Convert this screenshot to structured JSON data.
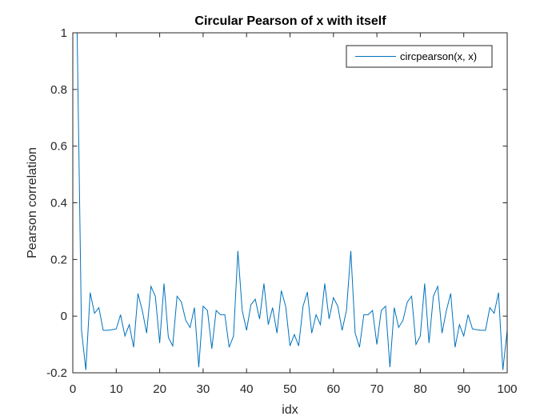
{
  "chart_data": {
    "type": "line",
    "title": "Circular Pearson of x with itself",
    "xlabel": "idx",
    "ylabel": "Pearson correlation",
    "xlim": [
      0,
      100
    ],
    "ylim": [
      -0.2,
      1
    ],
    "xticks": [
      "0",
      "10",
      "20",
      "30",
      "40",
      "50",
      "60",
      "70",
      "80",
      "90",
      "100"
    ],
    "yticks": [
      "-0.2",
      "0",
      "0.2",
      "0.4",
      "0.6",
      "0.8",
      "1"
    ],
    "grid": false,
    "legend_position": "top-right",
    "series": [
      {
        "name": "circpearson(x, x)",
        "color": "#0072BD",
        "x": [
          1,
          2,
          3,
          4,
          5,
          6,
          7,
          8,
          9,
          10,
          11,
          12,
          13,
          14,
          15,
          16,
          17,
          18,
          19,
          20,
          21,
          22,
          23,
          24,
          25,
          26,
          27,
          28,
          29,
          30,
          31,
          32,
          33,
          34,
          35,
          36,
          37,
          38,
          39,
          40,
          41,
          42,
          43,
          44,
          45,
          46,
          47,
          48,
          49,
          50,
          51,
          52,
          53,
          54,
          55,
          56,
          57,
          58,
          59,
          60,
          61,
          62,
          63,
          64,
          65,
          66,
          67,
          68,
          69,
          70,
          71,
          72,
          73,
          74,
          75,
          76,
          77,
          78,
          79,
          80,
          81,
          82,
          83,
          84,
          85,
          86,
          87,
          88,
          89,
          90,
          91,
          92,
          93,
          94,
          95,
          96,
          97,
          98,
          99,
          100
        ],
        "values": [
          1.0,
          -0.05,
          -0.19,
          0.083,
          0.01,
          0.03,
          -0.05,
          -0.05,
          -0.048,
          -0.045,
          0.005,
          -0.07,
          -0.03,
          -0.11,
          0.08,
          0.02,
          -0.06,
          0.105,
          0.07,
          -0.095,
          0.115,
          -0.075,
          -0.105,
          0.07,
          0.05,
          -0.015,
          -0.04,
          0.03,
          -0.18,
          0.035,
          0.02,
          -0.115,
          0.02,
          0.005,
          0.005,
          -0.11,
          -0.07,
          0.23,
          0.02,
          -0.05,
          0.04,
          0.06,
          -0.01,
          0.115,
          -0.03,
          0.03,
          -0.06,
          0.09,
          0.035,
          -0.105,
          -0.065,
          -0.105,
          0.035,
          0.085,
          -0.06,
          0.005,
          -0.03,
          0.115,
          -0.01,
          0.065,
          0.035,
          -0.05,
          0.02,
          0.23,
          -0.06,
          -0.11,
          0.005,
          0.005,
          0.02,
          -0.1,
          0.02,
          0.035,
          -0.18,
          0.03,
          -0.04,
          -0.015,
          0.05,
          0.07,
          -0.1,
          -0.07,
          0.115,
          -0.095,
          0.07,
          0.105,
          -0.06,
          0.02,
          0.08,
          -0.11,
          -0.03,
          -0.07,
          0.005,
          -0.045,
          -0.048,
          -0.05,
          -0.05,
          0.03,
          0.01,
          0.083,
          -0.19,
          -0.05
        ]
      }
    ]
  }
}
